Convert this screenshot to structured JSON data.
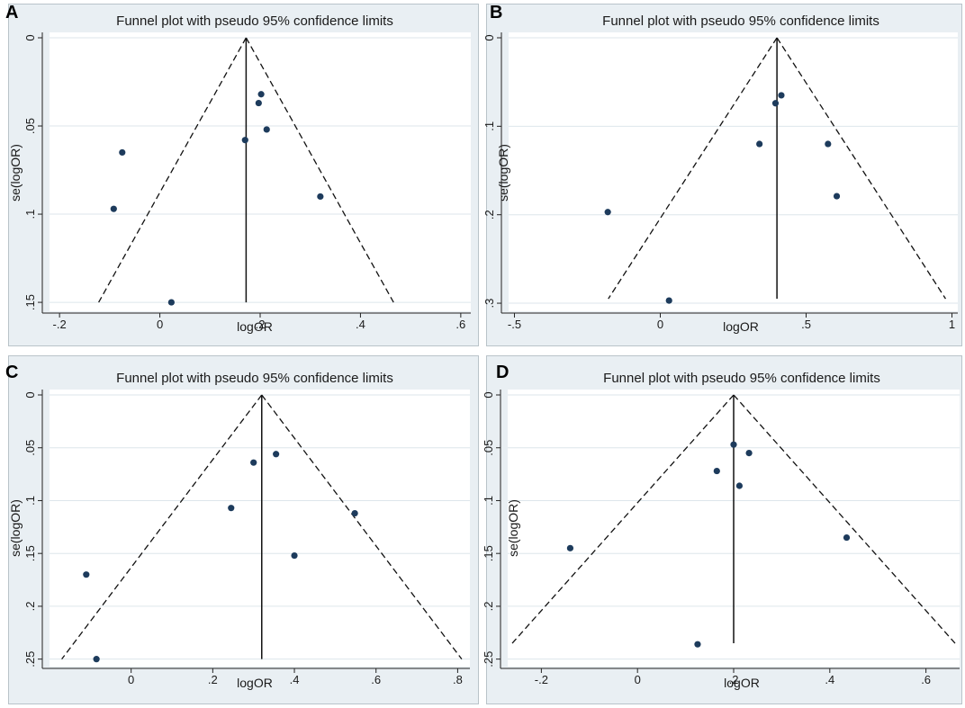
{
  "figure": {
    "background": "#e9eff3",
    "plot_background": "#ffffff",
    "gridline_color": "#dde6eb",
    "point_color": "#1d3b5c"
  },
  "chart_data": [
    {
      "label": "A",
      "type": "scatter",
      "title": "Funnel plot with pseudo 95% confidence limits",
      "xlabel": "logOR",
      "ylabel": "se(logOR)",
      "xlim": [
        -0.22,
        0.62
      ],
      "ylim": [
        0,
        0.152
      ],
      "y_reversed": true,
      "xticks": [
        -0.2,
        0,
        0.2,
        0.4,
        0.6
      ],
      "xtick_labels": [
        "-.2",
        "0",
        ".2",
        ".4",
        ".6"
      ],
      "yticks": [
        0,
        0.05,
        0.1,
        0.15
      ],
      "ytick_labels": [
        "0",
        ".05",
        ".1",
        ".15"
      ],
      "pooled": 0.172,
      "se_max": 0.15,
      "points": [
        {
          "x": -0.075,
          "y": 0.065
        },
        {
          "x": -0.092,
          "y": 0.097
        },
        {
          "x": 0.023,
          "y": 0.15
        },
        {
          "x": 0.17,
          "y": 0.058
        },
        {
          "x": 0.197,
          "y": 0.037
        },
        {
          "x": 0.202,
          "y": 0.032
        },
        {
          "x": 0.213,
          "y": 0.052
        },
        {
          "x": 0.32,
          "y": 0.09
        }
      ]
    },
    {
      "label": "B",
      "type": "scatter",
      "title": "Funnel plot with pseudo 95% confidence limits",
      "xlabel": "logOR",
      "ylabel": "se(logOR)",
      "xlim": [
        -0.52,
        1.02
      ],
      "ylim": [
        0,
        0.303
      ],
      "y_reversed": true,
      "xticks": [
        -0.5,
        0,
        0.5,
        1
      ],
      "xtick_labels": [
        "-.5",
        "0",
        ".5",
        "1"
      ],
      "yticks": [
        0,
        0.1,
        0.2,
        0.3
      ],
      "ytick_labels": [
        "0",
        ".1",
        ".2",
        ".3"
      ],
      "pooled": 0.4,
      "se_max": 0.295,
      "points": [
        {
          "x": -0.18,
          "y": 0.197
        },
        {
          "x": 0.03,
          "y": 0.297
        },
        {
          "x": 0.34,
          "y": 0.12
        },
        {
          "x": 0.395,
          "y": 0.074
        },
        {
          "x": 0.415,
          "y": 0.065
        },
        {
          "x": 0.575,
          "y": 0.12
        },
        {
          "x": 0.605,
          "y": 0.179
        }
      ]
    },
    {
      "label": "C",
      "type": "scatter",
      "title": "Funnel plot with pseudo 95% confidence limits",
      "xlabel": "logOR",
      "ylabel": "se(logOR)",
      "xlim": [
        -0.2,
        0.83
      ],
      "ylim": [
        0,
        0.252
      ],
      "y_reversed": true,
      "xticks": [
        0,
        0.2,
        0.4,
        0.6,
        0.8
      ],
      "xtick_labels": [
        "0",
        ".2",
        ".4",
        ".6",
        ".8"
      ],
      "yticks": [
        0,
        0.05,
        0.1,
        0.15,
        0.2,
        0.25
      ],
      "ytick_labels": [
        "0",
        ".05",
        ".1",
        ".15",
        ".2",
        ".25"
      ],
      "pooled": 0.32,
      "se_max": 0.25,
      "points": [
        {
          "x": -0.11,
          "y": 0.17
        },
        {
          "x": -0.085,
          "y": 0.25
        },
        {
          "x": 0.245,
          "y": 0.107
        },
        {
          "x": 0.3,
          "y": 0.064
        },
        {
          "x": 0.355,
          "y": 0.056
        },
        {
          "x": 0.4,
          "y": 0.152
        },
        {
          "x": 0.548,
          "y": 0.112
        }
      ]
    },
    {
      "label": "D",
      "type": "scatter",
      "title": "Funnel plot with pseudo 95% confidence limits",
      "xlabel": "logOR",
      "ylabel": "se(logOR)",
      "xlim": [
        -0.27,
        0.67
      ],
      "ylim": [
        0,
        0.252
      ],
      "y_reversed": true,
      "xticks": [
        -0.2,
        0,
        0.2,
        0.4,
        0.6
      ],
      "xtick_labels": [
        "-.2",
        "0",
        ".2",
        ".4",
        ".6"
      ],
      "yticks": [
        0,
        0.05,
        0.1,
        0.15,
        0.2,
        0.25
      ],
      "ytick_labels": [
        "0",
        ".05",
        ".1",
        ".15",
        ".2",
        ".25"
      ],
      "pooled": 0.2,
      "se_max": 0.235,
      "points": [
        {
          "x": -0.14,
          "y": 0.145
        },
        {
          "x": 0.125,
          "y": 0.236
        },
        {
          "x": 0.165,
          "y": 0.072
        },
        {
          "x": 0.2,
          "y": 0.047
        },
        {
          "x": 0.212,
          "y": 0.086
        },
        {
          "x": 0.232,
          "y": 0.055
        },
        {
          "x": 0.435,
          "y": 0.135
        }
      ]
    }
  ]
}
